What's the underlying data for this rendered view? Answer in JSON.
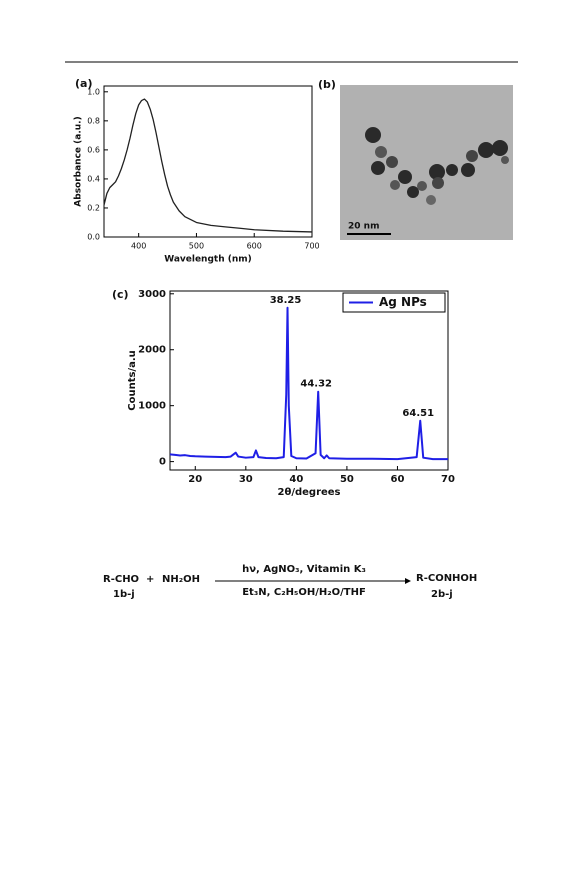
{
  "chart_data": [
    {
      "type": "line",
      "panel_label": "(a)",
      "x_label": "Wavelength (nm)",
      "y_label": "Absorbance (a.u.)",
      "x": [
        340,
        345,
        350,
        355,
        360,
        365,
        370,
        375,
        380,
        385,
        390,
        395,
        400,
        405,
        410,
        415,
        420,
        425,
        430,
        435,
        440,
        445,
        450,
        455,
        460,
        470,
        480,
        490,
        500,
        525,
        550,
        575,
        600,
        650,
        700
      ],
      "series": [
        {
          "name": "Absorbance",
          "color": "#222222",
          "values": [
            0.22,
            0.3,
            0.34,
            0.36,
            0.38,
            0.42,
            0.47,
            0.53,
            0.6,
            0.68,
            0.77,
            0.85,
            0.91,
            0.94,
            0.95,
            0.93,
            0.88,
            0.81,
            0.72,
            0.62,
            0.52,
            0.43,
            0.35,
            0.29,
            0.24,
            0.18,
            0.14,
            0.12,
            0.1,
            0.08,
            0.07,
            0.06,
            0.05,
            0.04,
            0.035
          ]
        }
      ],
      "xlim": [
        340,
        700
      ],
      "xticks": [
        400,
        500,
        600,
        700
      ],
      "ylim": [
        0,
        1.04
      ],
      "yticks": [
        {
          "value": 0,
          "label": "0.0"
        },
        0.2,
        0.4,
        0.6,
        0.8,
        {
          "value": 1,
          "label": "1.0"
        }
      ]
    },
    {
      "type": "line",
      "panel_label": "(c)",
      "x_label": "2θ/degrees",
      "y_label": "Counts/a.u",
      "x": [
        15,
        16,
        17,
        18,
        19,
        20,
        22,
        24,
        26,
        27,
        28,
        28.5,
        30,
        31.5,
        32,
        32.5,
        34,
        36,
        37.5,
        38,
        38.25,
        38.5,
        39,
        40,
        42,
        43.8,
        44.32,
        44.8,
        45.5,
        46,
        46.5,
        50,
        55,
        60,
        63.8,
        64.51,
        65.1,
        67,
        70
      ],
      "series": [
        {
          "name": "Ag NPs",
          "color": "#1f1fe6",
          "values": [
            130,
            120,
            110,
            115,
            100,
            95,
            90,
            85,
            80,
            90,
            160,
            90,
            70,
            80,
            200,
            80,
            65,
            60,
            80,
            1200,
            2750,
            1000,
            100,
            60,
            55,
            150,
            1250,
            120,
            60,
            110,
            60,
            50,
            50,
            45,
            80,
            730,
            70,
            45,
            45
          ]
        }
      ],
      "legend": "upper right",
      "annotations": [
        {
          "text": "38.25",
          "x": 38.25,
          "y": 2750
        },
        {
          "text": "44.32",
          "x": 44.32,
          "y": 1250
        },
        {
          "text": "64.51",
          "x": 64.51,
          "y": 730
        }
      ],
      "xlim": [
        15,
        70
      ],
      "xticks": [
        20,
        30,
        40,
        50,
        60,
        70
      ],
      "ylim": [
        -150,
        3050
      ],
      "yticks": [
        0,
        1000,
        2000,
        3000
      ]
    }
  ],
  "tem_image": {
    "panel_label": "(b)",
    "scale_bar": "20 nm"
  },
  "scheme": {
    "reactant_1": "R-CHO",
    "plus": "+",
    "reactant_2": "NH₂OH",
    "reactant_1_code": "1b-j",
    "conditions_top": "hν, AgNO₃, Vitamin K₃",
    "conditions_bottom": "Et₃N, C₂H₅OH/H₂O/THF",
    "product": "R-CONHOH",
    "product_code": "2b-j"
  }
}
